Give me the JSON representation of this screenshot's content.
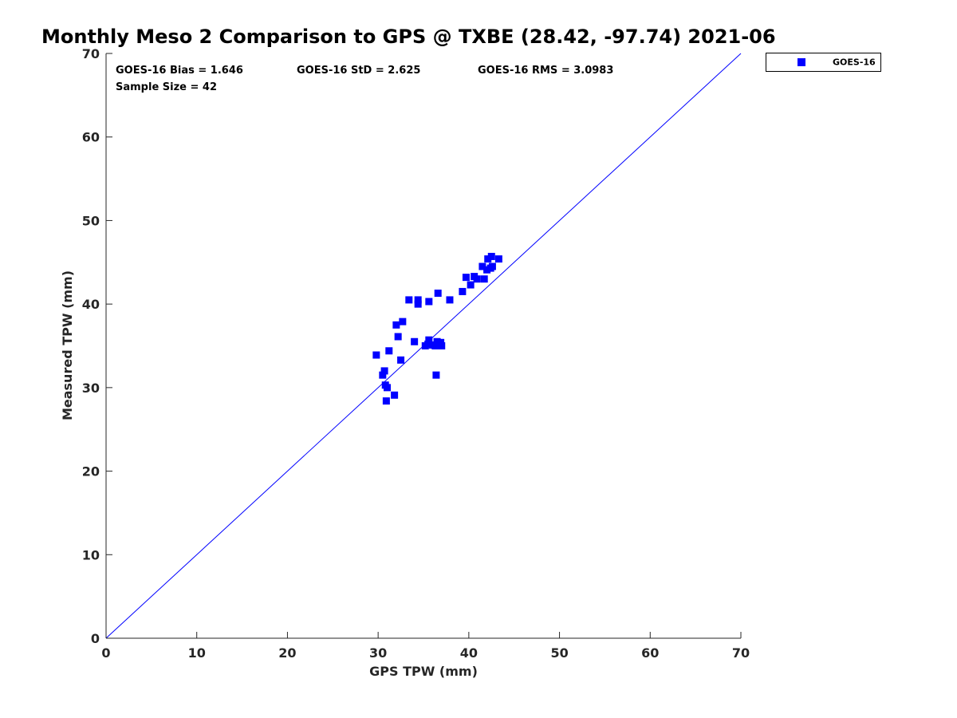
{
  "chart_data": {
    "type": "scatter",
    "title": "Monthly Meso 2 Comparison to GPS @ TXBE (28.42, -97.74) 2021-06",
    "xlabel": "GPS TPW (mm)",
    "ylabel": "Measured TPW (mm)",
    "xlim": [
      0,
      70
    ],
    "ylim": [
      0,
      70
    ],
    "xticks": [
      0,
      10,
      20,
      30,
      40,
      50,
      60,
      70
    ],
    "yticks": [
      0,
      10,
      20,
      30,
      40,
      50,
      60,
      70
    ],
    "xtick_labels": [
      "0",
      "10",
      "20",
      "30",
      "40",
      "50",
      "60",
      "70"
    ],
    "ytick_labels": [
      "0",
      "10",
      "20",
      "30",
      "40",
      "50",
      "60",
      "70"
    ],
    "grid": false,
    "legend_position": "outside-top-right",
    "annotations": [
      "GOES-16 Bias = 1.646",
      "GOES-16 StD = 2.625",
      "GOES-16 RMS = 3.0983",
      "Sample Size = 42"
    ],
    "reference_line": {
      "x": [
        0,
        70
      ],
      "y": [
        0,
        70
      ],
      "color": "#0000ff"
    },
    "series": [
      {
        "name": "GOES-16",
        "color": "#0000ff",
        "marker": "square",
        "points": [
          [
            29.8,
            33.9
          ],
          [
            30.5,
            31.5
          ],
          [
            30.7,
            32.0
          ],
          [
            30.8,
            30.3
          ],
          [
            30.9,
            28.4
          ],
          [
            31.0,
            30.0
          ],
          [
            31.2,
            34.4
          ],
          [
            31.8,
            29.1
          ],
          [
            32.0,
            37.5
          ],
          [
            32.2,
            36.1
          ],
          [
            32.5,
            33.3
          ],
          [
            32.7,
            37.9
          ],
          [
            33.4,
            40.5
          ],
          [
            34.0,
            35.5
          ],
          [
            34.4,
            40.0
          ],
          [
            34.4,
            40.5
          ],
          [
            35.2,
            35.0
          ],
          [
            35.5,
            35.2
          ],
          [
            35.6,
            40.3
          ],
          [
            35.6,
            35.7
          ],
          [
            36.0,
            35.1
          ],
          [
            36.3,
            35.0
          ],
          [
            36.4,
            31.5
          ],
          [
            36.5,
            35.5
          ],
          [
            36.6,
            41.3
          ],
          [
            36.7,
            35.0
          ],
          [
            36.9,
            35.4
          ],
          [
            37.0,
            35.0
          ],
          [
            37.9,
            40.5
          ],
          [
            39.3,
            41.5
          ],
          [
            39.7,
            43.2
          ],
          [
            40.2,
            42.3
          ],
          [
            40.6,
            43.3
          ],
          [
            40.9,
            43.0
          ],
          [
            41.5,
            44.5
          ],
          [
            41.7,
            43.0
          ],
          [
            42.0,
            44.1
          ],
          [
            42.1,
            45.4
          ],
          [
            42.4,
            44.3
          ],
          [
            42.5,
            45.7
          ],
          [
            42.6,
            44.5
          ],
          [
            43.3,
            45.4
          ]
        ]
      }
    ]
  }
}
